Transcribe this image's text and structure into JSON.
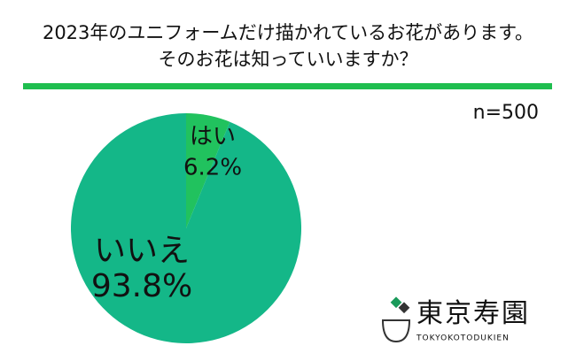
{
  "chart_data": {
    "type": "pie",
    "title": [
      "2023年のユニフォームだけ描かれているお花があります。",
      "そのお花は知っていいますか？"
    ],
    "annotation": "n=500",
    "categories": [
      "はい",
      "いいえ"
    ],
    "values": [
      6.2,
      93.8
    ],
    "value_labels": [
      "6.2%",
      "93.8%"
    ],
    "colors": [
      "#21c25e",
      "#14b788"
    ]
  },
  "logo": {
    "name": "東京寿園",
    "romaji": "TOKYOKOTODUKIEN"
  }
}
